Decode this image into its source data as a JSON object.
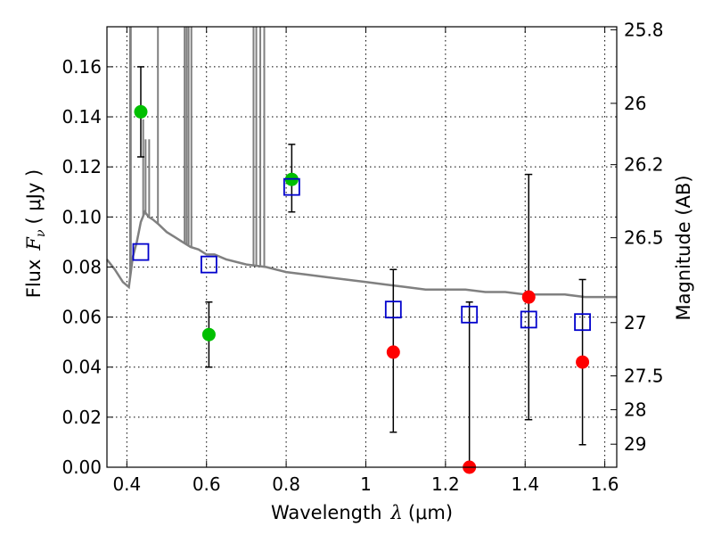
{
  "chart_data": {
    "type": "scatter",
    "xlabel_prefix": "Wavelength",
    "xlabel_symbol": "λ",
    "xlabel_unit": "(μm)",
    "ylabel_prefix": "Flux",
    "ylabel_symbol": "F",
    "ylabel_subscript": "ν",
    "ylabel_unit": "( μJy )",
    "y2label": "Magnitude (AB)",
    "xlim": [
      0.35,
      1.63
    ],
    "ylim": [
      0.0,
      0.176
    ],
    "grid": true,
    "x_ticks": [
      0.4,
      0.6,
      0.8,
      1.0,
      1.2,
      1.4,
      1.6
    ],
    "x_tick_labels": [
      "0.4",
      "0.6",
      "0.8",
      "1",
      "1.2",
      "1.4",
      "1.6"
    ],
    "y_ticks": [
      0.0,
      0.02,
      0.04,
      0.06,
      0.08,
      0.1,
      0.12,
      0.14,
      0.16
    ],
    "y_tick_labels": [
      "0.00",
      "0.02",
      "0.04",
      "0.06",
      "0.08",
      "0.10",
      "0.12",
      "0.14",
      "0.16"
    ],
    "y2_ticks": [
      {
        "label": "25.8",
        "flux": 0.1748
      },
      {
        "label": "26",
        "flux": 0.1454
      },
      {
        "label": "26.2",
        "flux": 0.1209
      },
      {
        "label": "26.5",
        "flux": 0.0917
      },
      {
        "label": "27",
        "flux": 0.0578
      },
      {
        "label": "27.5",
        "flux": 0.0365
      },
      {
        "label": "28",
        "flux": 0.023
      },
      {
        "label": "29",
        "flux": 0.0092
      }
    ],
    "series": [
      {
        "marker": "filled-circle",
        "color": "#00bf00",
        "points": [
          {
            "x": 0.435,
            "y": 0.142,
            "ylo": 0.124,
            "yhi": 0.16
          },
          {
            "x": 0.606,
            "y": 0.053,
            "ylo": 0.04,
            "yhi": 0.066
          },
          {
            "x": 0.814,
            "y": 0.115,
            "ylo": 0.102,
            "yhi": 0.129
          }
        ]
      },
      {
        "marker": "filled-circle",
        "color": "#ff0000",
        "points": [
          {
            "x": 1.069,
            "y": 0.046,
            "ylo": 0.014,
            "yhi": 0.079
          },
          {
            "x": 1.26,
            "y": 0.0,
            "ylo": 0.0,
            "yhi": 0.066
          },
          {
            "x": 1.409,
            "y": 0.068,
            "ylo": 0.019,
            "yhi": 0.117
          },
          {
            "x": 1.544,
            "y": 0.042,
            "ylo": 0.009,
            "yhi": 0.075
          }
        ]
      },
      {
        "marker": "open-square",
        "color": "#0000cc",
        "points": [
          {
            "x": 0.435,
            "y": 0.086
          },
          {
            "x": 0.606,
            "y": 0.081
          },
          {
            "x": 0.814,
            "y": 0.112
          },
          {
            "x": 1.069,
            "y": 0.063
          },
          {
            "x": 1.26,
            "y": 0.061
          },
          {
            "x": 1.409,
            "y": 0.059
          },
          {
            "x": 1.544,
            "y": 0.058
          }
        ]
      }
    ],
    "spectrum": {
      "color": "#808080",
      "continuum": [
        [
          0.35,
          0.083
        ],
        [
          0.37,
          0.079
        ],
        [
          0.39,
          0.074
        ],
        [
          0.405,
          0.072
        ],
        [
          0.415,
          0.084
        ],
        [
          0.425,
          0.09
        ],
        [
          0.435,
          0.098
        ],
        [
          0.445,
          0.102
        ],
        [
          0.455,
          0.1
        ],
        [
          0.465,
          0.099
        ],
        [
          0.48,
          0.097
        ],
        [
          0.5,
          0.094
        ],
        [
          0.52,
          0.092
        ],
        [
          0.54,
          0.09
        ],
        [
          0.56,
          0.088
        ],
        [
          0.58,
          0.087
        ],
        [
          0.6,
          0.085
        ],
        [
          0.62,
          0.085
        ],
        [
          0.65,
          0.083
        ],
        [
          0.7,
          0.081
        ],
        [
          0.75,
          0.08
        ],
        [
          0.8,
          0.078
        ],
        [
          0.85,
          0.077
        ],
        [
          0.9,
          0.076
        ],
        [
          0.95,
          0.075
        ],
        [
          1.0,
          0.074
        ],
        [
          1.05,
          0.073
        ],
        [
          1.1,
          0.072
        ],
        [
          1.15,
          0.071
        ],
        [
          1.2,
          0.071
        ],
        [
          1.25,
          0.071
        ],
        [
          1.3,
          0.07
        ],
        [
          1.35,
          0.07
        ],
        [
          1.4,
          0.069
        ],
        [
          1.45,
          0.069
        ],
        [
          1.5,
          0.069
        ],
        [
          1.55,
          0.068
        ],
        [
          1.6,
          0.068
        ],
        [
          1.63,
          0.068
        ]
      ],
      "spikes": [
        {
          "x": 0.408,
          "top": 0.176
        },
        {
          "x": 0.41,
          "top": 0.176
        },
        {
          "x": 0.441,
          "top": 0.139
        },
        {
          "x": 0.447,
          "top": 0.131
        },
        {
          "x": 0.456,
          "top": 0.131
        },
        {
          "x": 0.478,
          "top": 0.176
        },
        {
          "x": 0.545,
          "top": 0.176
        },
        {
          "x": 0.55,
          "top": 0.176
        },
        {
          "x": 0.555,
          "top": 0.176
        },
        {
          "x": 0.562,
          "top": 0.176
        },
        {
          "x": 0.718,
          "top": 0.176
        },
        {
          "x": 0.725,
          "top": 0.176
        },
        {
          "x": 0.735,
          "top": 0.176
        },
        {
          "x": 0.745,
          "top": 0.176
        }
      ]
    }
  }
}
